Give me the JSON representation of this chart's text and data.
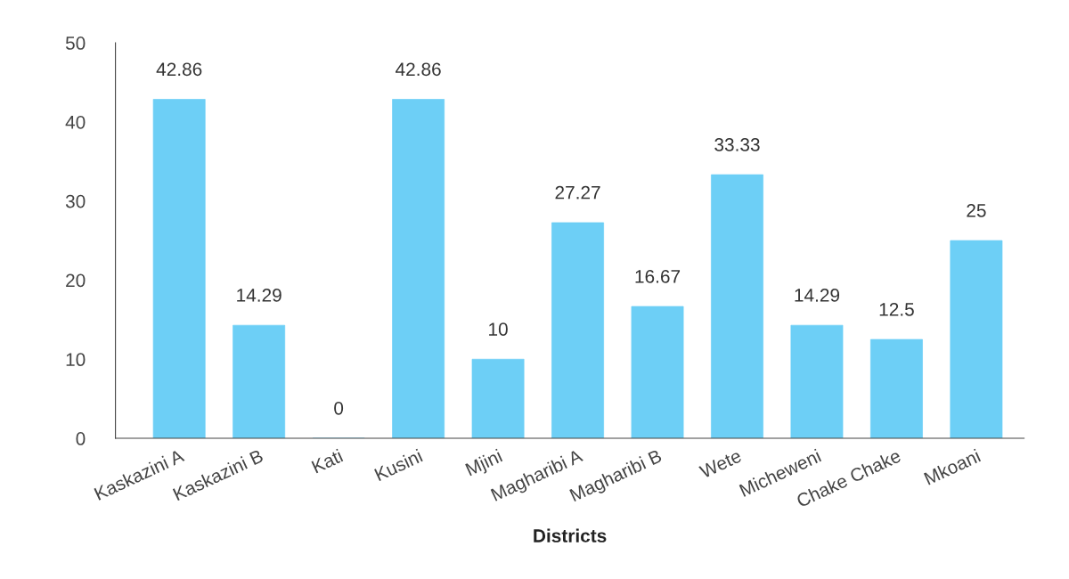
{
  "chart_data": {
    "type": "bar",
    "xlabel": "Districts",
    "categories": [
      "Kaskazini A",
      "Kaskazini B",
      "Kati",
      "Kusini",
      "Mjini",
      "Magharibi A",
      "Magharibi B",
      "Wete",
      "Micheweni",
      "Chake Chake",
      "Mkoani"
    ],
    "values": [
      42.86,
      14.29,
      0,
      42.86,
      10,
      27.27,
      16.67,
      33.33,
      14.29,
      12.5,
      25
    ],
    "color": "#6dcff6",
    "ylim": [
      0,
      50
    ],
    "yticks": [
      0,
      10,
      20,
      30,
      40,
      50
    ],
    "grid": false,
    "data_labels": true,
    "legend": false
  }
}
